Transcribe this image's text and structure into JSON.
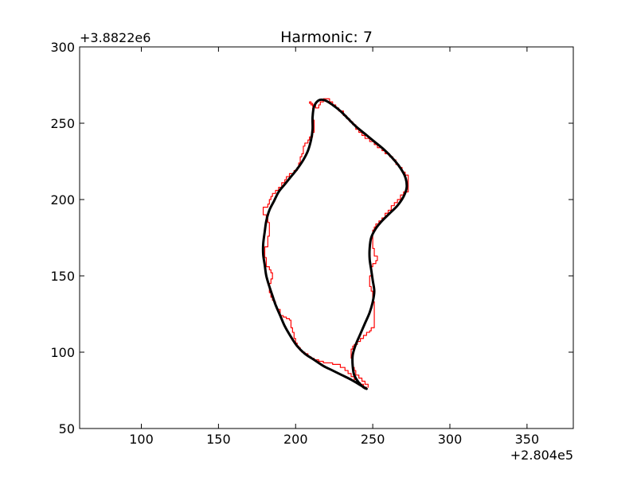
{
  "chart_data": {
    "type": "line",
    "title": "Harmonic: 7",
    "xlabel": "",
    "ylabel": "",
    "x_offset_label": "+2.804e5",
    "y_offset_label": "+3.8822e6",
    "xlim": [
      60,
      380
    ],
    "ylim": [
      50,
      300
    ],
    "x_ticks": [
      100,
      150,
      200,
      250,
      300,
      350
    ],
    "y_ticks": [
      50,
      100,
      150,
      200,
      250,
      300
    ],
    "x_tick_labels": [
      "100",
      "150",
      "200",
      "250",
      "300",
      "350"
    ],
    "y_tick_labels": [
      "50",
      "100",
      "150",
      "200",
      "250",
      "300"
    ],
    "grid": false,
    "series": [
      {
        "color": "#ff0000",
        "style": "step",
        "points": [
          [
            246,
            77
          ],
          [
            244,
            79
          ],
          [
            242,
            80
          ],
          [
            240,
            82
          ],
          [
            238,
            84
          ],
          [
            236,
            86
          ],
          [
            234,
            88
          ],
          [
            232,
            90
          ],
          [
            229,
            92
          ],
          [
            226,
            92
          ],
          [
            224,
            93
          ],
          [
            220,
            93
          ],
          [
            218,
            94
          ],
          [
            215,
            95
          ],
          [
            212,
            96
          ],
          [
            210,
            97
          ],
          [
            208,
            99
          ],
          [
            206,
            100
          ],
          [
            204,
            101
          ],
          [
            203,
            103
          ],
          [
            202,
            104
          ],
          [
            201,
            106
          ],
          [
            200,
            107
          ],
          [
            200,
            109
          ],
          [
            199,
            110
          ],
          [
            199,
            113
          ],
          [
            198,
            116
          ],
          [
            197,
            118
          ],
          [
            197,
            121
          ],
          [
            196,
            122
          ],
          [
            194,
            123
          ],
          [
            192,
            124
          ],
          [
            190,
            125
          ],
          [
            190,
            128
          ],
          [
            188,
            130
          ],
          [
            187,
            133
          ],
          [
            186,
            134
          ],
          [
            185,
            136
          ],
          [
            184,
            139
          ],
          [
            183,
            141
          ],
          [
            183,
            145
          ],
          [
            184,
            148
          ],
          [
            185,
            150
          ],
          [
            185,
            152
          ],
          [
            184,
            154
          ],
          [
            183,
            156
          ],
          [
            181,
            157
          ],
          [
            181,
            162
          ],
          [
            180,
            165
          ],
          [
            180,
            169
          ],
          [
            182,
            172
          ],
          [
            182,
            176
          ],
          [
            183,
            178
          ],
          [
            183,
            180
          ],
          [
            183,
            185
          ],
          [
            182,
            188
          ],
          [
            181,
            190
          ],
          [
            179,
            192
          ],
          [
            179,
            195
          ],
          [
            182,
            197
          ],
          [
            183,
            200
          ],
          [
            184,
            202
          ],
          [
            185,
            204
          ],
          [
            187,
            206
          ],
          [
            189,
            208
          ],
          [
            191,
            211
          ],
          [
            193,
            213
          ],
          [
            194,
            215
          ],
          [
            196,
            217
          ],
          [
            199,
            219
          ],
          [
            201,
            221
          ],
          [
            202,
            224
          ],
          [
            203,
            226
          ],
          [
            203,
            228
          ],
          [
            204,
            230
          ],
          [
            205,
            232
          ],
          [
            205,
            235
          ],
          [
            206,
            237
          ],
          [
            208,
            239
          ],
          [
            209,
            241
          ],
          [
            211,
            244
          ],
          [
            212,
            246
          ],
          [
            212,
            252
          ],
          [
            211,
            257
          ],
          [
            211,
            260
          ],
          [
            212,
            261
          ],
          [
            211,
            263
          ],
          [
            209,
            264
          ],
          [
            210,
            262
          ],
          [
            213,
            260
          ],
          [
            215,
            262
          ],
          [
            216,
            264
          ],
          [
            218,
            266
          ],
          [
            220,
            266
          ],
          [
            222,
            264
          ],
          [
            224,
            262
          ],
          [
            226,
            260
          ],
          [
            228,
            258
          ],
          [
            231,
            255
          ],
          [
            233,
            253
          ],
          [
            235,
            251
          ],
          [
            237,
            249
          ],
          [
            239,
            246
          ],
          [
            241,
            244
          ],
          [
            243,
            242
          ],
          [
            245,
            240
          ],
          [
            248,
            238
          ],
          [
            251,
            236
          ],
          [
            253,
            234
          ],
          [
            256,
            232
          ],
          [
            258,
            230
          ],
          [
            261,
            228
          ],
          [
            263,
            226
          ],
          [
            265,
            223
          ],
          [
            267,
            221
          ],
          [
            269,
            218
          ],
          [
            271,
            216
          ],
          [
            273,
            212
          ],
          [
            273,
            205
          ],
          [
            270,
            203
          ],
          [
            268,
            200
          ],
          [
            266,
            198
          ],
          [
            264,
            196
          ],
          [
            262,
            193
          ],
          [
            260,
            191
          ],
          [
            258,
            188
          ],
          [
            256,
            186
          ],
          [
            254,
            184
          ],
          [
            252,
            182
          ],
          [
            251,
            180
          ],
          [
            250,
            178
          ],
          [
            250,
            168
          ],
          [
            251,
            163
          ],
          [
            253,
            160
          ],
          [
            252,
            158
          ],
          [
            250,
            156
          ],
          [
            249,
            155
          ],
          [
            249,
            150
          ],
          [
            248,
            146
          ],
          [
            248,
            143
          ],
          [
            249,
            140
          ],
          [
            250,
            137
          ],
          [
            250,
            133
          ],
          [
            251,
            130
          ],
          [
            251,
            116
          ],
          [
            249,
            114
          ],
          [
            248,
            113
          ],
          [
            246,
            111
          ],
          [
            244,
            109
          ],
          [
            242,
            107
          ],
          [
            240,
            105
          ],
          [
            238,
            104
          ],
          [
            237,
            102
          ],
          [
            236,
            100
          ],
          [
            236,
            96
          ],
          [
            237,
            94
          ],
          [
            237,
            90
          ],
          [
            238,
            88
          ],
          [
            239,
            85
          ],
          [
            241,
            83
          ],
          [
            243,
            81
          ],
          [
            245,
            79
          ],
          [
            247,
            77
          ]
        ]
      },
      {
        "color": "#000000",
        "style": "smooth",
        "points": [
          [
            246,
            76
          ],
          [
            241,
            79
          ],
          [
            236,
            82
          ],
          [
            230,
            85
          ],
          [
            224,
            88
          ],
          [
            218,
            91
          ],
          [
            212,
            95
          ],
          [
            206,
            99
          ],
          [
            201,
            104
          ],
          [
            197,
            110
          ],
          [
            193,
            117
          ],
          [
            190,
            124
          ],
          [
            187,
            131
          ],
          [
            185,
            137
          ],
          [
            183,
            143
          ],
          [
            181,
            150
          ],
          [
            180,
            157
          ],
          [
            179,
            164
          ],
          [
            179,
            171
          ],
          [
            180,
            179
          ],
          [
            181,
            186
          ],
          [
            183,
            193
          ],
          [
            186,
            199
          ],
          [
            189,
            205
          ],
          [
            193,
            210
          ],
          [
            197,
            215
          ],
          [
            201,
            220
          ],
          [
            205,
            226
          ],
          [
            208,
            232
          ],
          [
            210,
            239
          ],
          [
            211,
            246
          ],
          [
            211,
            254
          ],
          [
            212,
            261
          ],
          [
            215,
            265
          ],
          [
            219,
            265
          ],
          [
            224,
            262
          ],
          [
            229,
            258
          ],
          [
            234,
            253
          ],
          [
            239,
            248
          ],
          [
            245,
            243
          ],
          [
            251,
            238
          ],
          [
            257,
            233
          ],
          [
            262,
            228
          ],
          [
            267,
            222
          ],
          [
            271,
            215
          ],
          [
            272,
            208
          ],
          [
            270,
            202
          ],
          [
            266,
            196
          ],
          [
            261,
            191
          ],
          [
            256,
            186
          ],
          [
            252,
            181
          ],
          [
            249,
            175
          ],
          [
            248,
            168
          ],
          [
            248,
            161
          ],
          [
            249,
            154
          ],
          [
            250,
            147
          ],
          [
            251,
            140
          ],
          [
            250,
            133
          ],
          [
            248,
            126
          ],
          [
            245,
            119
          ],
          [
            242,
            112
          ],
          [
            239,
            105
          ],
          [
            237,
            98
          ],
          [
            237,
            91
          ],
          [
            238,
            85
          ],
          [
            241,
            80
          ],
          [
            244,
            77
          ],
          [
            246,
            76
          ]
        ]
      }
    ]
  }
}
